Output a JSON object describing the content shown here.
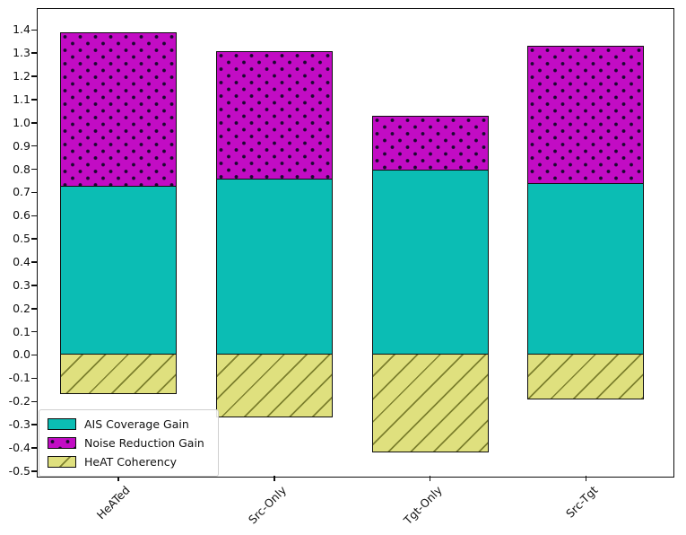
{
  "chart_data": {
    "type": "bar",
    "stacked": true,
    "categories": [
      "HeATed",
      "Src-Only",
      "Tgt-Only",
      "Src-Tgt"
    ],
    "series": [
      {
        "name": "AIS Coverage Gain",
        "color": "#0bbdb4",
        "hatch": "none",
        "values": [
          0.73,
          0.76,
          0.8,
          0.74
        ]
      },
      {
        "name": "Noise Reduction Gain",
        "color": "#c20cc4",
        "hatch": "dots",
        "values": [
          0.66,
          0.55,
          0.23,
          0.59
        ]
      },
      {
        "name": "HeAT Coherency",
        "color": "#dfe07e",
        "hatch": "diagonal",
        "values": [
          -0.17,
          -0.27,
          -0.42,
          -0.19
        ]
      }
    ],
    "yticks": [
      1.4,
      1.3,
      1.2,
      1.1,
      1.0,
      0.9,
      0.8,
      0.7,
      0.6,
      0.5,
      0.4,
      0.3,
      0.2,
      0.1,
      0.0,
      -0.1,
      -0.2,
      -0.3,
      -0.4,
      -0.5
    ],
    "ylim": [
      -0.52,
      1.49
    ],
    "bar_edge_color": "#0e0e0e",
    "hatch_line_color": "#7d802e",
    "legend": {
      "position": "lower-left",
      "labels": [
        "AIS Coverage Gain",
        "Noise Reduction Gain",
        "HeAT Coherency"
      ]
    },
    "grid": false
  }
}
